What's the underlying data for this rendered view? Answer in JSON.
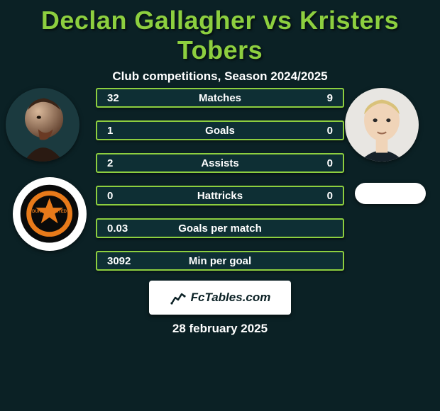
{
  "background_color": "#0b2125",
  "text_color": "#ffffff",
  "title_color": "#8dcf3f",
  "card_border_color": "#8dcf3f",
  "header": {
    "title": "Declan Gallagher vs Kristers Tobers",
    "subtitle": "Club competitions, Season 2024/2025"
  },
  "players": {
    "left": {
      "name": "Declan Gallagher"
    },
    "right": {
      "name": "Kristers Tobers"
    }
  },
  "club": {
    "left": {
      "name": "Dundee United"
    }
  },
  "stats": {
    "row_bg": "#0e2f34",
    "row_border": "#8dcf3f",
    "rows": [
      {
        "left": "32",
        "label": "Matches",
        "right": "9"
      },
      {
        "left": "1",
        "label": "Goals",
        "right": "0"
      },
      {
        "left": "2",
        "label": "Assists",
        "right": "0"
      },
      {
        "left": "0",
        "label": "Hattricks",
        "right": "0"
      },
      {
        "left": "0.03",
        "label": "Goals per match",
        "right": ""
      },
      {
        "left": "3092",
        "label": "Min per goal",
        "right": ""
      }
    ]
  },
  "brand": {
    "bg": "#ffffff",
    "text_color": "#0b2125",
    "label": "FcTables.com"
  },
  "date": "28 february 2025"
}
